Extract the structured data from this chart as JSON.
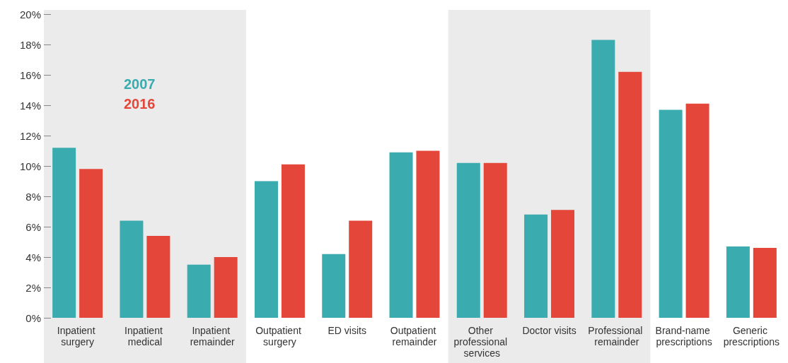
{
  "chart_data": {
    "type": "bar",
    "categories": [
      "Inpatient surgery",
      "Inpatient medical",
      "Inpatient remainder",
      "Outpatient surgery",
      "ED visits",
      "Outpatient remainder",
      "Other professional services",
      "Doctor visits",
      "Professional remainder",
      "Brand-name prescriptions",
      "Generic prescriptions"
    ],
    "series": [
      {
        "name": "2007",
        "color": "#3aacb0",
        "values": [
          11.2,
          6.4,
          3.5,
          9.0,
          4.2,
          10.9,
          10.2,
          6.8,
          18.3,
          13.7,
          4.7
        ]
      },
      {
        "name": "2016",
        "color": "#e4473a",
        "values": [
          9.8,
          5.4,
          4.0,
          10.1,
          6.4,
          11.0,
          10.2,
          7.1,
          16.2,
          14.1,
          4.6
        ]
      }
    ],
    "ylim": [
      0,
      20
    ],
    "yticks": [
      {
        "value": 0,
        "label": "0%"
      },
      {
        "value": 2,
        "label": "2%"
      },
      {
        "value": 4,
        "label": "4%"
      },
      {
        "value": 6,
        "label": "6%"
      },
      {
        "value": 8,
        "label": "8%"
      },
      {
        "value": 10,
        "label": "10%"
      },
      {
        "value": 12,
        "label": "12%"
      },
      {
        "value": 14,
        "label": "14%"
      },
      {
        "value": 16,
        "label": "16%"
      },
      {
        "value": 18,
        "label": "18%"
      },
      {
        "value": 20,
        "label": "20%"
      }
    ],
    "bands": [
      {
        "axis": "x",
        "from": "Inpatient surgery",
        "to": "Inpatient remainder",
        "color": "#ebebeb"
      },
      {
        "axis": "x",
        "from": "Other professional services",
        "to": "Professional remainder",
        "color": "#ebebeb"
      }
    ],
    "grid": false,
    "legend": "top left"
  }
}
